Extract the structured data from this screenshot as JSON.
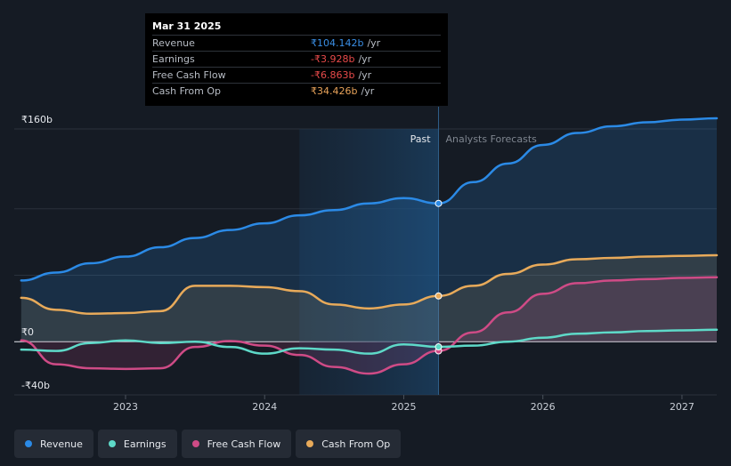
{
  "tooltip": {
    "date": "Mar 31 2025",
    "rows": [
      {
        "label": "Revenue",
        "value": "₹104.142b",
        "unit": "/yr",
        "color": "#3a8fe6"
      },
      {
        "label": "Earnings",
        "value": "-₹3.928b",
        "unit": "/yr",
        "color": "#e84a4a"
      },
      {
        "label": "Free Cash Flow",
        "value": "-₹6.863b",
        "unit": "/yr",
        "color": "#e84a4a"
      },
      {
        "label": "Cash From Op",
        "value": "₹34.426b",
        "unit": "/yr",
        "color": "#e8a35a"
      }
    ]
  },
  "legend": [
    {
      "label": "Revenue",
      "color": "#2b8ae6"
    },
    {
      "label": "Earnings",
      "color": "#5ed9c8"
    },
    {
      "label": "Free Cash Flow",
      "color": "#cf4b86"
    },
    {
      "label": "Cash From Op",
      "color": "#e8aa5a"
    }
  ],
  "chart_data": {
    "type": "line",
    "title": "",
    "xlabel": "",
    "ylabel": "",
    "ylim": [
      -40,
      160
    ],
    "yticks": [
      {
        "value": 160,
        "label": "₹160b"
      },
      {
        "value": 0,
        "label": "₹0"
      },
      {
        "value": -40,
        "label": "-₹40b"
      }
    ],
    "xlim": [
      2022.2,
      2027.25
    ],
    "xticks": [
      {
        "value": 2023,
        "label": "2023"
      },
      {
        "value": 2024,
        "label": "2024"
      },
      {
        "value": 2025,
        "label": "2025"
      },
      {
        "value": 2026,
        "label": "2026"
      },
      {
        "value": 2027,
        "label": "2027"
      }
    ],
    "shaded_range": [
      2024.25,
      2025.25
    ],
    "divider_x": 2025.25,
    "past_label": "Past",
    "forecast_label": "Analysts Forecasts",
    "highlight_x": 2025.25,
    "series": [
      {
        "name": "Revenue",
        "color": "#2b8ae6",
        "fill": true,
        "points": [
          [
            2022.25,
            46
          ],
          [
            2022.5,
            52
          ],
          [
            2022.75,
            59
          ],
          [
            2023.0,
            64
          ],
          [
            2023.25,
            71
          ],
          [
            2023.5,
            78
          ],
          [
            2023.75,
            84
          ],
          [
            2024.0,
            89
          ],
          [
            2024.25,
            95
          ],
          [
            2024.5,
            99
          ],
          [
            2024.75,
            104
          ],
          [
            2025.0,
            108
          ],
          [
            2025.25,
            104
          ],
          [
            2025.5,
            120
          ],
          [
            2025.75,
            134
          ],
          [
            2026.0,
            148
          ],
          [
            2026.25,
            157
          ],
          [
            2026.5,
            162
          ],
          [
            2026.75,
            165
          ],
          [
            2027.0,
            167
          ],
          [
            2027.25,
            168
          ]
        ]
      },
      {
        "name": "Cash From Op",
        "color": "#e8aa5a",
        "fill": true,
        "points": [
          [
            2022.25,
            33
          ],
          [
            2022.5,
            24
          ],
          [
            2022.75,
            21
          ],
          [
            2023.0,
            21.5
          ],
          [
            2023.25,
            23
          ],
          [
            2023.5,
            42
          ],
          [
            2023.75,
            42
          ],
          [
            2024.0,
            41
          ],
          [
            2024.25,
            38
          ],
          [
            2024.5,
            28
          ],
          [
            2024.75,
            25
          ],
          [
            2025.0,
            28
          ],
          [
            2025.25,
            34.4
          ],
          [
            2025.5,
            42
          ],
          [
            2025.75,
            51
          ],
          [
            2026.0,
            58
          ],
          [
            2026.25,
            62
          ],
          [
            2026.5,
            63
          ],
          [
            2026.75,
            64
          ],
          [
            2027.0,
            64.5
          ],
          [
            2027.25,
            65
          ]
        ]
      },
      {
        "name": "Free Cash Flow",
        "color": "#cf4b86",
        "fill": true,
        "points": [
          [
            2022.25,
            1
          ],
          [
            2022.5,
            -17
          ],
          [
            2022.75,
            -20
          ],
          [
            2023.0,
            -20.5
          ],
          [
            2023.25,
            -20
          ],
          [
            2023.5,
            -4
          ],
          [
            2023.75,
            0.5
          ],
          [
            2024.0,
            -3
          ],
          [
            2024.25,
            -10
          ],
          [
            2024.5,
            -19
          ],
          [
            2024.75,
            -24
          ],
          [
            2025.0,
            -17
          ],
          [
            2025.25,
            -6.9
          ],
          [
            2025.5,
            7
          ],
          [
            2025.75,
            22
          ],
          [
            2026.0,
            36
          ],
          [
            2026.25,
            44
          ],
          [
            2026.5,
            46
          ],
          [
            2026.75,
            47
          ],
          [
            2027.0,
            48
          ],
          [
            2027.25,
            48.5
          ]
        ]
      },
      {
        "name": "Earnings",
        "color": "#5ed9c8",
        "fill": false,
        "points": [
          [
            2022.25,
            -6
          ],
          [
            2022.5,
            -7
          ],
          [
            2022.75,
            -1
          ],
          [
            2023.0,
            1
          ],
          [
            2023.25,
            -1
          ],
          [
            2023.5,
            0
          ],
          [
            2023.75,
            -4
          ],
          [
            2024.0,
            -9
          ],
          [
            2024.25,
            -5
          ],
          [
            2024.5,
            -6
          ],
          [
            2024.75,
            -9
          ],
          [
            2025.0,
            -2
          ],
          [
            2025.25,
            -3.9
          ],
          [
            2025.5,
            -3
          ],
          [
            2025.75,
            0
          ],
          [
            2026.0,
            3
          ],
          [
            2026.25,
            6
          ],
          [
            2026.5,
            7
          ],
          [
            2026.75,
            8
          ],
          [
            2027.0,
            8.5
          ],
          [
            2027.25,
            9
          ]
        ]
      }
    ]
  }
}
